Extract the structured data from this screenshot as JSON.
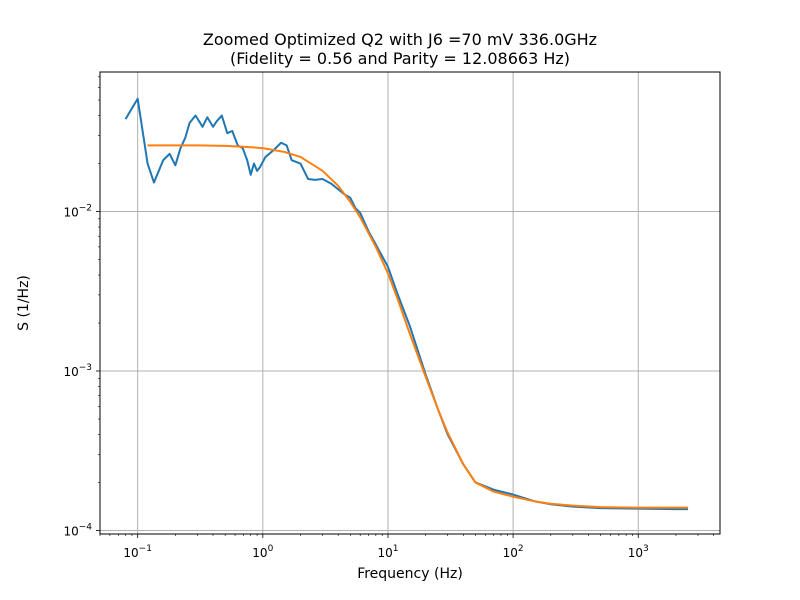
{
  "chart_data": {
    "type": "line",
    "title": "Zoomed Optimized Q2 with J6 =70 mV 336.0GHz",
    "subtitle": "(Fidelity = 0.56 and Parity = 12.08663 Hz)",
    "xlabel": "Frequency (Hz)",
    "ylabel": "S (1/Hz)",
    "x_scale": "log",
    "y_scale": "log",
    "xlim": [
      0.05,
      4500
    ],
    "ylim": [
      9.5e-05,
      0.075
    ],
    "grid": true,
    "x_ticks": [
      {
        "value": 0.1,
        "base": "10",
        "exp": "−1"
      },
      {
        "value": 1,
        "base": "10",
        "exp": "0"
      },
      {
        "value": 10,
        "base": "10",
        "exp": "1"
      },
      {
        "value": 100,
        "base": "10",
        "exp": "2"
      },
      {
        "value": 1000,
        "base": "10",
        "exp": "3"
      }
    ],
    "y_ticks": [
      {
        "value": 0.0001,
        "base": "10",
        "exp": "−4"
      },
      {
        "value": 0.001,
        "base": "10",
        "exp": "−3"
      },
      {
        "value": 0.01,
        "base": "10",
        "exp": "−2"
      }
    ],
    "series": [
      {
        "color": "#1f77b4",
        "x": [
          0.08,
          0.1,
          0.12,
          0.135,
          0.16,
          0.18,
          0.2,
          0.22,
          0.24,
          0.26,
          0.29,
          0.33,
          0.36,
          0.4,
          0.43,
          0.47,
          0.52,
          0.57,
          0.63,
          0.69,
          0.75,
          0.8,
          0.85,
          0.9,
          0.95,
          1.05,
          1.2,
          1.4,
          1.55,
          1.7,
          2.0,
          2.3,
          2.6,
          3.0,
          3.5,
          4.0,
          4.5,
          5.0,
          5.5,
          6.0,
          7.0,
          8.0,
          10.0,
          12.0,
          15.0,
          20.0,
          25.0,
          30.0,
          40.0,
          50.0,
          70.0,
          100.0,
          150.0,
          200.0,
          300.0,
          500.0,
          1000.0,
          2000.0,
          2500.0
        ],
        "y": [
          0.038,
          0.051,
          0.02,
          0.0152,
          0.021,
          0.023,
          0.0195,
          0.025,
          0.029,
          0.036,
          0.04,
          0.034,
          0.039,
          0.034,
          0.037,
          0.04,
          0.031,
          0.032,
          0.026,
          0.025,
          0.021,
          0.017,
          0.02,
          0.018,
          0.019,
          0.022,
          0.024,
          0.027,
          0.026,
          0.021,
          0.02,
          0.016,
          0.0158,
          0.016,
          0.015,
          0.0138,
          0.0128,
          0.0122,
          0.0105,
          0.0098,
          0.0075,
          0.0062,
          0.0045,
          0.003,
          0.0019,
          0.00095,
          0.00058,
          0.0004,
          0.00026,
          0.0002,
          0.00018,
          0.000168,
          0.000152,
          0.000146,
          0.000141,
          0.000138,
          0.000137,
          0.000136,
          0.000136
        ]
      },
      {
        "color": "#ff7f0e",
        "x": [
          0.12,
          0.2,
          0.3,
          0.5,
          0.7,
          1.0,
          1.5,
          2.0,
          3.0,
          4.0,
          5.0,
          6.0,
          8.0,
          10.0,
          12.0,
          15.0,
          20.0,
          25.0,
          30.0,
          40.0,
          50.0,
          70.0,
          100.0,
          150.0,
          200.0,
          300.0,
          500.0,
          1000.0,
          2500.0
        ],
        "y": [
          0.026,
          0.026,
          0.026,
          0.0258,
          0.0255,
          0.025,
          0.0236,
          0.022,
          0.018,
          0.0145,
          0.0115,
          0.0092,
          0.006,
          0.0041,
          0.0028,
          0.0017,
          0.00092,
          0.00058,
          0.00041,
          0.00026,
          0.0002,
          0.000175,
          0.000163,
          0.000152,
          0.000147,
          0.000143,
          0.00014,
          0.000139,
          0.000139
        ]
      }
    ]
  }
}
